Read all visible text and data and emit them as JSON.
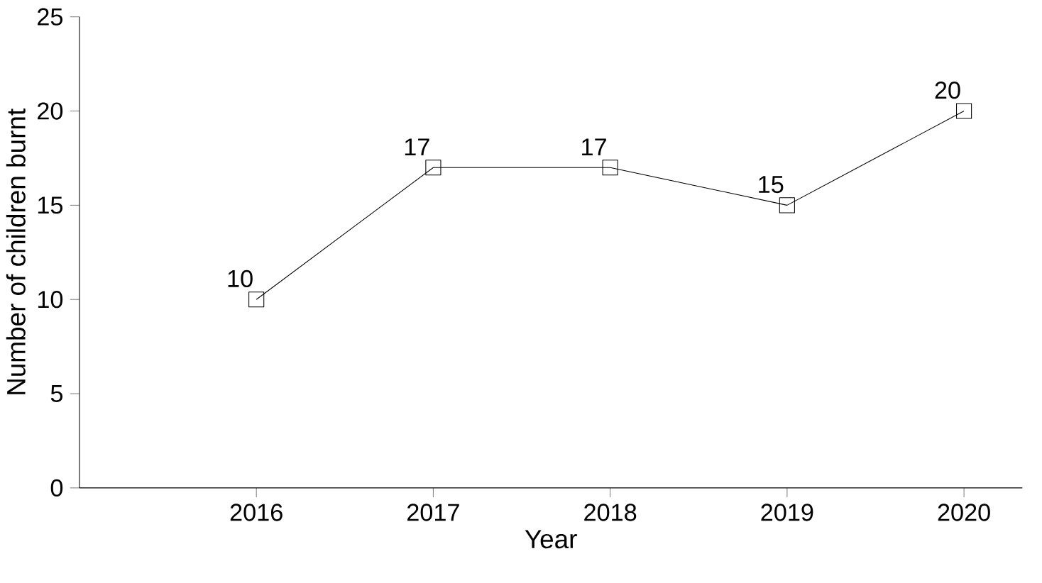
{
  "chart_data": {
    "type": "line",
    "xlabel": "Year",
    "ylabel": "Number of children burnt",
    "categories": [
      "2016",
      "2017",
      "2018",
      "2019",
      "2020"
    ],
    "values": [
      10,
      17,
      17,
      15,
      20
    ],
    "color": "#000000",
    "ylim": [
      0,
      25
    ],
    "yticks": [
      0,
      5,
      10,
      15,
      20,
      25
    ],
    "marker": "square",
    "data_labels": true
  }
}
